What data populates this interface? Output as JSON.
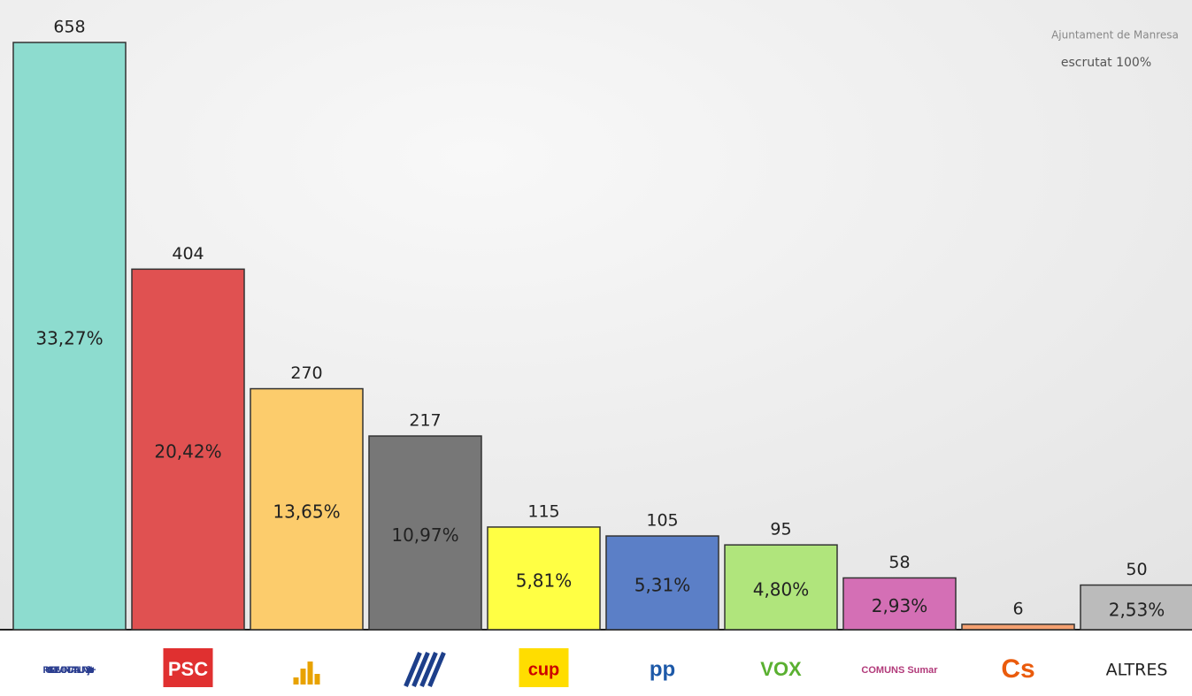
{
  "chart_data": {
    "type": "bar",
    "header": "Ajuntament de Manresa",
    "subtitle": "escrutat 100%",
    "categories": [
      "PUIGDEMONT CATALUNYA junts+",
      "PSC",
      null,
      null,
      "cup",
      "pp",
      "VOX",
      "COMUNS Sumar",
      "Cs",
      "ALTRES"
    ],
    "values": [
      658,
      404,
      270,
      217,
      115,
      105,
      95,
      58,
      6,
      50
    ],
    "share_labels": [
      "33,27%",
      "20,42%",
      "13,65%",
      "10,97%",
      "5,81%",
      "5,31%",
      "4,80%",
      "2,93%",
      null,
      "2,53%"
    ],
    "colors": [
      "#8ddccf",
      "#e05151",
      "#fccc6c",
      "#777777",
      "#ffff44",
      "#5b7fc7",
      "#b0e57c",
      "#d46fb5",
      "#f4a070",
      "#bbbbbb"
    ],
    "ylim": [
      0,
      660
    ]
  }
}
